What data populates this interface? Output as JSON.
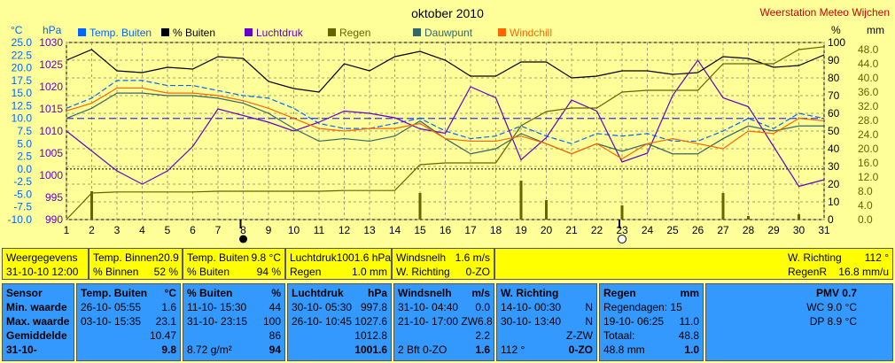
{
  "title": "oktober 2010",
  "station": "Weerstation Meteo Wijchen",
  "colors": {
    "temp": "#0066ff",
    "hum": "#000000",
    "press": "#6600cc",
    "rain": "#666600",
    "dew": "#336666",
    "wc": "#ff6600",
    "grid": "#a0a080",
    "leftAxis": "#0066ff",
    "tempLimit": "#3333ff"
  },
  "axis_units": {
    "temp": "°C",
    "press": "hPa",
    "hum": "%",
    "rain": "mm"
  },
  "chart_data": {
    "type": "line",
    "title": "oktober 2010",
    "x": [
      1,
      2,
      3,
      4,
      5,
      6,
      7,
      8,
      9,
      10,
      11,
      12,
      13,
      14,
      15,
      16,
      17,
      18,
      19,
      20,
      21,
      22,
      23,
      24,
      25,
      26,
      27,
      28,
      29,
      30,
      31
    ],
    "xlim": [
      1,
      31
    ],
    "temp_ticks": [
      "25.0",
      "22.5",
      "20.0",
      "17.5",
      "15.0",
      "12.5",
      "10.0",
      "7.5",
      "5.0",
      "2.5",
      "0.0",
      "-2.5",
      "-5.0",
      "-7.5",
      "-10.0"
    ],
    "press_ticks": [
      "1030",
      "1025",
      "1020",
      "1015",
      "1010",
      "1005",
      "1000",
      "995",
      "990"
    ],
    "hum_ticks": [
      "100",
      "90",
      "80",
      "70",
      "60",
      "50",
      "40",
      "30",
      "20",
      "10",
      "0"
    ],
    "rain_ticks": [
      "48.0",
      "44.0",
      "40.0",
      "36.0",
      "32.0",
      "28.0",
      "24.0",
      "20.0",
      "16.0",
      "12.0",
      "8.0",
      "4.0",
      "0.0"
    ],
    "temp_range": [
      -10,
      25
    ],
    "press_range": [
      990,
      1030
    ],
    "hum_range": [
      0,
      100
    ],
    "rain_range": [
      0,
      50
    ],
    "grid": true,
    "legend_position": "top",
    "series": [
      {
        "key": "temp",
        "name": "Temp. Buiten",
        "axis": "temp",
        "style": "dash",
        "values": [
          12.0,
          14.0,
          17.5,
          17.5,
          16.5,
          16.5,
          15.5,
          14.5,
          14.0,
          12.0,
          9.0,
          8.0,
          8.0,
          9.0,
          10.0,
          7.5,
          6.0,
          6.5,
          8.5,
          6.5,
          5.0,
          7.0,
          6.5,
          7.0,
          5.5,
          5.5,
          7.5,
          10.0,
          8.0,
          11.0,
          10.0
        ]
      },
      {
        "key": "hum",
        "name": "% Buiten",
        "axis": "hum",
        "values": [
          90,
          96,
          84,
          83,
          86,
          85,
          92,
          91,
          78,
          74,
          72,
          88,
          84,
          92,
          95,
          90,
          81,
          81,
          89,
          89,
          80,
          81,
          84,
          84,
          82,
          83,
          92,
          91,
          86,
          87,
          93
        ]
      },
      {
        "key": "press",
        "name": "Luchtdruk",
        "axis": "press",
        "values": [
          1010.0,
          1005.5,
          1001.0,
          998.0,
          1001.0,
          1006.5,
          1015.0,
          1013.5,
          1012.0,
          1010.0,
          1012.0,
          1014.5,
          1014.0,
          1013.0,
          1010.5,
          1009.5,
          1020.0,
          1017.5,
          1003.5,
          1008.5,
          1017.0,
          1014.5,
          1003.0,
          1005.0,
          1018.0,
          1026.0,
          1017.5,
          1015.5,
          1006.5,
          997.5,
          999.0
        ]
      },
      {
        "key": "rain",
        "name": "Regen",
        "axis": "rain",
        "values": [
          0.0,
          7.5,
          7.8,
          7.8,
          7.8,
          7.8,
          8.0,
          8.0,
          8.0,
          8.0,
          8.0,
          8.2,
          8.2,
          8.2,
          15.5,
          16.0,
          16.0,
          16.0,
          26.5,
          30.5,
          31.5,
          31.5,
          36.0,
          36.5,
          36.5,
          36.5,
          44.0,
          44.0,
          44.0,
          48.0,
          48.8
        ]
      },
      {
        "key": "dew",
        "name": "Dauwpunt",
        "axis": "temp",
        "values": [
          10.0,
          12.0,
          15.0,
          15.0,
          14.5,
          14.5,
          14.0,
          13.0,
          11.0,
          8.0,
          5.5,
          6.0,
          5.5,
          6.5,
          9.5,
          6.0,
          3.0,
          4.0,
          7.0,
          5.0,
          3.0,
          5.0,
          3.5,
          5.0,
          3.0,
          3.0,
          6.0,
          8.5,
          7.5,
          8.5,
          8.5
        ]
      },
      {
        "key": "wc",
        "name": "Windchill",
        "axis": "temp",
        "values": [
          11.5,
          13.0,
          16.0,
          16.0,
          15.0,
          15.0,
          14.5,
          13.5,
          12.0,
          10.0,
          8.0,
          7.5,
          8.0,
          8.0,
          9.0,
          6.0,
          5.5,
          5.5,
          6.5,
          5.0,
          3.0,
          5.0,
          2.0,
          5.0,
          6.0,
          5.0,
          4.0,
          7.5,
          7.0,
          10.0,
          9.5
        ]
      }
    ],
    "daily_rain": [
      0,
      8.0,
      0,
      0,
      0,
      0,
      0,
      0,
      0,
      0,
      0,
      0,
      0,
      0,
      7.5,
      0,
      0,
      0,
      11.0,
      5.5,
      0,
      0,
      4.0,
      0,
      0,
      0,
      7.5,
      1.0,
      0,
      1.5,
      0
    ]
  },
  "row1": {
    "weergegevens": {
      "label": "Weergegevens",
      "value": "31-10-10 12:00"
    },
    "binnen": {
      "temp_label": "Temp. Binnen",
      "temp": "20.9 °C",
      "hum_label": "% Binnen",
      "hum": "52 %"
    },
    "buiten": {
      "temp_label": "Temp. Buiten",
      "temp": "9.8 °C",
      "hum_label": "% Buiten",
      "hum": "94 %"
    },
    "druk": {
      "label": "Luchtdruk",
      "value": "1001.6 hPa",
      "rain_label": "Regen",
      "rain": "1.0 mm"
    },
    "wind": {
      "label": "Windsnelh",
      "value": "1.6 m/s",
      "dir_label": "W. Richting",
      "dir": "0-ZO"
    },
    "extra": {
      "dir_label": "W. Richting",
      "dir": "112 °",
      "rate_label": "RegenR",
      "rate": "16.8 mm/u"
    }
  },
  "table": {
    "sensor": {
      "header": "Sensor",
      "rows": [
        "Min. waarde",
        "Max. waarde",
        "Gemiddelde",
        "31-10-"
      ]
    },
    "temp": {
      "header": "Temp. Buiten",
      "unit": "°C",
      "rows": [
        {
          "left": "26-10- 05:55",
          "right": "1.6"
        },
        {
          "left": "03-10- 15:35",
          "right": "23.1"
        },
        {
          "left": "",
          "right": "10.47"
        },
        {
          "left": "",
          "right": "9.8"
        }
      ]
    },
    "hum": {
      "header": "% Buiten",
      "unit": "%",
      "rows": [
        {
          "left": "11-10- 15:30",
          "right": "44"
        },
        {
          "left": "31-10- 23:15",
          "right": "100"
        },
        {
          "left": "",
          "right": "86"
        },
        {
          "left": "8.72 g/m²",
          "right": "94"
        }
      ]
    },
    "press": {
      "header": "Luchtdruk",
      "unit": "hPa",
      "rows": [
        {
          "left": "30-10- 05:30",
          "right": "997.8"
        },
        {
          "left": "26-10- 10:45",
          "right": "1027.6"
        },
        {
          "left": "",
          "right": "1012.8"
        },
        {
          "left": "",
          "right": "1001.6"
        }
      ]
    },
    "wind": {
      "header": "Windsnelh",
      "unit": "m/s",
      "rows": [
        {
          "left": "31-10- 04:40",
          "right": "0.0"
        },
        {
          "left": "21-10- 17:00 ZW",
          "right": "6.8"
        },
        {
          "left": "",
          "right": "2.2"
        },
        {
          "left": "2 Bft 0-ZO",
          "right": "1.6"
        }
      ]
    },
    "dir": {
      "header": "W. Richting",
      "rows": [
        {
          "left": "14-10- 00:30",
          "right": "N"
        },
        {
          "left": "30-10- 13:40",
          "right": "N"
        },
        {
          "left": "",
          "right": "Z-ZW"
        },
        {
          "left": "112 °",
          "right": "0-ZO"
        }
      ]
    },
    "rain": {
      "header": "Regen",
      "unit": "mm",
      "rows": [
        {
          "left": "Regendagen: 15",
          "right": ""
        },
        {
          "left": "19-10- 06:25",
          "right": "11.0"
        },
        {
          "left": "Totaal:",
          "right": "48.8"
        },
        {
          "left": "48.8 mm",
          "right": "1.0"
        }
      ]
    },
    "pmv": {
      "header": "PMV 0.7",
      "rows": [
        "WC 9.0 °C",
        "DP 8.9 °C"
      ]
    }
  }
}
